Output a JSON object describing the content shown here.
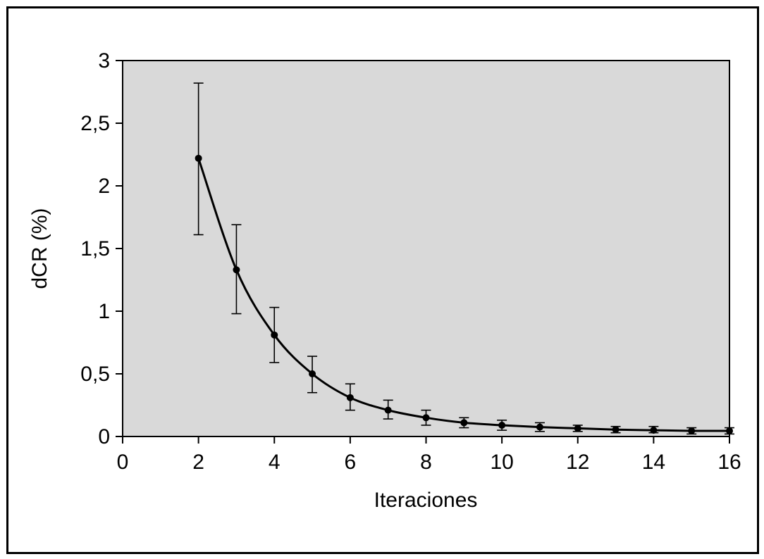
{
  "chart_data": {
    "type": "line",
    "title": "",
    "xlabel": "Iteraciones",
    "ylabel": "dCR (%)",
    "xlim": [
      0,
      16
    ],
    "ylim": [
      0,
      3
    ],
    "x_ticks": [
      0,
      2,
      4,
      6,
      8,
      10,
      12,
      14,
      16
    ],
    "x_tick_labels": [
      "0",
      "2",
      "4",
      "6",
      "8",
      "10",
      "12",
      "14",
      "16"
    ],
    "y_ticks": [
      0,
      0.5,
      1,
      1.5,
      2,
      2.5,
      3
    ],
    "y_tick_labels": [
      "0",
      "0,5",
      "1",
      "1,5",
      "2",
      "2,5",
      "3"
    ],
    "grid": false,
    "legend": "none",
    "colors": {
      "plot_background": "#d9d9d9",
      "line": "#000000",
      "marker": "#000000"
    },
    "series": [
      {
        "x": [
          2,
          3,
          4,
          5,
          6,
          7,
          8,
          9,
          10,
          11,
          12,
          13,
          14,
          15,
          16
        ],
        "y": [
          2.22,
          1.33,
          0.81,
          0.5,
          0.31,
          0.21,
          0.15,
          0.11,
          0.09,
          0.075,
          0.065,
          0.055,
          0.05,
          0.045,
          0.045
        ],
        "err_low": [
          1.61,
          0.98,
          0.59,
          0.35,
          0.21,
          0.14,
          0.09,
          0.07,
          0.05,
          0.04,
          0.04,
          0.03,
          0.03,
          0.02,
          0.02
        ],
        "err_high": [
          2.82,
          1.69,
          1.03,
          0.64,
          0.42,
          0.29,
          0.21,
          0.15,
          0.13,
          0.11,
          0.09,
          0.08,
          0.08,
          0.07,
          0.07
        ]
      }
    ]
  }
}
